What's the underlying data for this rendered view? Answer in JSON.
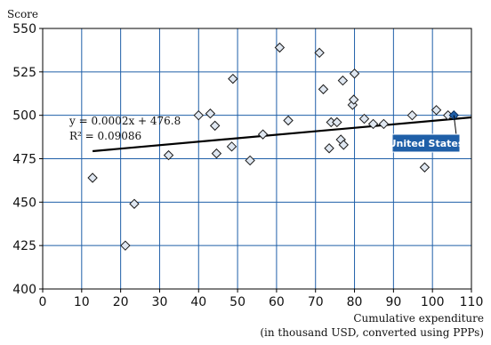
{
  "chart_data": {
    "type": "scatter",
    "ylabel": "Score",
    "xlabel_line1": "Cumulative expenditure",
    "xlabel_line2": "(in thousand USD, converted using PPPs)",
    "xlim": [
      0,
      110
    ],
    "ylim": [
      400,
      550
    ],
    "xticks": [
      0,
      10,
      20,
      30,
      40,
      50,
      60,
      70,
      80,
      90,
      100,
      110
    ],
    "yticks": [
      400,
      425,
      450,
      475,
      500,
      525,
      550
    ],
    "grid": true,
    "trendline": {
      "slope": 0.0002,
      "intercept": 476.8,
      "equation": "y = 0.0002x + 476.8",
      "r2": "R² = 0.09086"
    },
    "highlight": {
      "label": "United States",
      "x": 105.5,
      "y": 500,
      "color": "#1f5fa8"
    },
    "points": [
      {
        "x": 12.8,
        "y": 464
      },
      {
        "x": 21.2,
        "y": 425
      },
      {
        "x": 23.5,
        "y": 449
      },
      {
        "x": 32.3,
        "y": 477
      },
      {
        "x": 40.0,
        "y": 500
      },
      {
        "x": 43.0,
        "y": 501
      },
      {
        "x": 44.2,
        "y": 494
      },
      {
        "x": 44.6,
        "y": 478
      },
      {
        "x": 48.5,
        "y": 482
      },
      {
        "x": 48.8,
        "y": 521
      },
      {
        "x": 53.2,
        "y": 474
      },
      {
        "x": 56.5,
        "y": 489
      },
      {
        "x": 60.8,
        "y": 539
      },
      {
        "x": 63.0,
        "y": 497
      },
      {
        "x": 71.0,
        "y": 536
      },
      {
        "x": 72.0,
        "y": 515
      },
      {
        "x": 73.5,
        "y": 481
      },
      {
        "x": 74.0,
        "y": 496
      },
      {
        "x": 75.5,
        "y": 496
      },
      {
        "x": 76.5,
        "y": 486
      },
      {
        "x": 77.0,
        "y": 520
      },
      {
        "x": 77.2,
        "y": 483
      },
      {
        "x": 79.5,
        "y": 506
      },
      {
        "x": 79.8,
        "y": 509
      },
      {
        "x": 80.0,
        "y": 524
      },
      {
        "x": 82.5,
        "y": 498
      },
      {
        "x": 84.8,
        "y": 495
      },
      {
        "x": 87.5,
        "y": 495
      },
      {
        "x": 94.8,
        "y": 500
      },
      {
        "x": 98.0,
        "y": 470
      },
      {
        "x": 101.0,
        "y": 503
      },
      {
        "x": 104.0,
        "y": 500
      }
    ]
  }
}
